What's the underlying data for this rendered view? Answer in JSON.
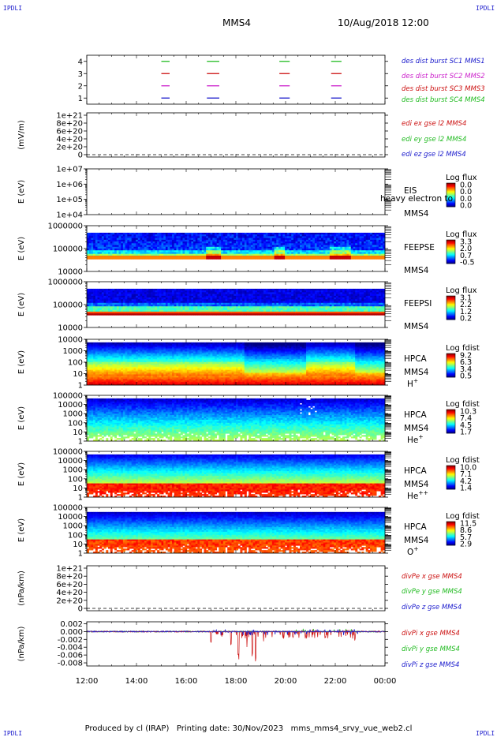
{
  "header": {
    "corner_label": "IPDLI",
    "spacecraft": "MMS4",
    "datetime": "10/Aug/2018 12:00"
  },
  "footer": {
    "produced_by": "Produced by cl (IRAP)",
    "printing_date": "Printing date: 30/Nov/2023",
    "script": "mms_mms4_srvy_vue_web2.cl"
  },
  "chart_data": {
    "type": "panel-stack",
    "x_axis": {
      "range": [
        "12:00",
        "00:00"
      ],
      "tick_labels": [
        "12:00",
        "14:00",
        "16:00",
        "18:00",
        "20:00",
        "22:00",
        "00:00"
      ]
    },
    "panels": [
      {
        "id": "burst",
        "type": "line",
        "ylabel": "",
        "yticks": [
          "1",
          "2",
          "3",
          "4"
        ],
        "ylim": [
          0.5,
          4.5
        ],
        "legend": [
          {
            "label": "des dist burst SC1 MMS1",
            "color": "#1a1acc"
          },
          {
            "label": "des dist burst SC2 MMS2",
            "color": "#cc22cc"
          },
          {
            "label": "des dist burst SC3 MMS3",
            "color": "#cc1111"
          },
          {
            "label": "des dist burst SC4 MMS4",
            "color": "#22bb22"
          }
        ],
        "series": [
          {
            "level": 4,
            "color": "#22bb22"
          },
          {
            "level": 3,
            "color": "#cc1111"
          },
          {
            "level": 2,
            "color": "#cc22cc"
          },
          {
            "level": 1,
            "color": "#1a1acc"
          }
        ],
        "intervals": [
          [
            "15:00",
            "15:20"
          ],
          [
            "16:50",
            "17:20"
          ],
          [
            "19:45",
            "20:10"
          ],
          [
            "21:50",
            "22:15"
          ]
        ]
      },
      {
        "id": "edi",
        "type": "line",
        "ylabel": "(mV/m)",
        "yticks": [
          "0",
          "2e+20",
          "4e+20",
          "6e+20",
          "8e+20",
          "1e+21"
        ],
        "ylim": [
          0,
          1e+21
        ],
        "legend": [
          {
            "label": "edi ex gse l2 MMS4",
            "color": "#cc1111"
          },
          {
            "label": "edi ey gse l2 MMS4",
            "color": "#22bb22"
          },
          {
            "label": "edi ez gse l2 MMS4",
            "color": "#1a1acc"
          }
        ]
      },
      {
        "id": "eis",
        "type": "heatmap",
        "ylabel": "E (eV)",
        "yticks": [
          "1e+04",
          "1e+05",
          "1e+06",
          "1e+07"
        ],
        "instrument": "EIS",
        "species": "heavy electron to",
        "spacecraft": "MMS4",
        "colorbar": {
          "title": "Log flux",
          "ticks": [
            "0.0",
            "0.0",
            "0.0",
            "0.0"
          ]
        }
      },
      {
        "id": "feepse",
        "type": "heatmap",
        "ylabel": "E (eV)",
        "yticks": [
          "10000",
          "100000",
          "1000000"
        ],
        "instrument": "FEEPSE",
        "spacecraft": "MMS4",
        "colorbar": {
          "title": "Log flux",
          "ticks": [
            "3.3",
            "2.0",
            "0.7",
            "-0.5"
          ]
        }
      },
      {
        "id": "feepsi",
        "type": "heatmap",
        "ylabel": "E (eV)",
        "yticks": [
          "10000",
          "100000",
          "1000000"
        ],
        "instrument": "FEEPSI",
        "spacecraft": "MMS4",
        "colorbar": {
          "title": "Log flux",
          "ticks": [
            "3.1",
            "2.2",
            "1.2",
            "0.2"
          ]
        }
      },
      {
        "id": "hpca_h",
        "type": "heatmap",
        "ylabel": "E (eV)",
        "yticks": [
          "1",
          "10",
          "100",
          "1000",
          "10000"
        ],
        "instrument": "HPCA",
        "spacecraft": "MMS4",
        "species_base": "H",
        "species_sup": "+",
        "colorbar": {
          "title": "Log fdist",
          "ticks": [
            "9.2",
            "6.3",
            "3.4",
            "0.5"
          ]
        }
      },
      {
        "id": "hpca_he",
        "type": "heatmap",
        "ylabel": "E (eV)",
        "yticks": [
          "1",
          "10",
          "100",
          "1000",
          "10000",
          "100000"
        ],
        "instrument": "HPCA",
        "spacecraft": "MMS4",
        "species_base": "He",
        "species_sup": "+",
        "colorbar": {
          "title": "Log fdist",
          "ticks": [
            "10.3",
            "7.4",
            "4.5",
            "1.7"
          ]
        }
      },
      {
        "id": "hpca_hepp",
        "type": "heatmap",
        "ylabel": "E (eV)",
        "yticks": [
          "1",
          "10",
          "100",
          "1000",
          "10000",
          "100000"
        ],
        "instrument": "HPCA",
        "spacecraft": "MMS4",
        "species_base": "He",
        "species_sup": "++",
        "colorbar": {
          "title": "Log fdist",
          "ticks": [
            "10.0",
            "7.1",
            "4.2",
            "1.4"
          ]
        }
      },
      {
        "id": "hpca_o",
        "type": "heatmap",
        "ylabel": "E (eV)",
        "yticks": [
          "1",
          "10",
          "100",
          "1000",
          "10000",
          "100000"
        ],
        "instrument": "HPCA",
        "spacecraft": "MMS4",
        "species_base": "O",
        "species_sup": "+",
        "colorbar": {
          "title": "Log fdist",
          "ticks": [
            "11.5",
            "8.6",
            "5.7",
            "2.9"
          ]
        }
      },
      {
        "id": "divpe",
        "type": "line",
        "ylabel": "(nPa/km)",
        "yticks": [
          "0",
          "2e+20",
          "4e+20",
          "6e+20",
          "8e+20",
          "1e+21"
        ],
        "ylim": [
          0,
          1e+21
        ],
        "legend": [
          {
            "label": "divPe x gse MMS4",
            "color": "#cc1111"
          },
          {
            "label": "divPe y gse MMS4",
            "color": "#22bb22"
          },
          {
            "label": "divPe z gse MMS4",
            "color": "#1a1acc"
          }
        ]
      },
      {
        "id": "divpi",
        "type": "line",
        "ylabel": "(nPa/km)",
        "yticks": [
          "-0.008",
          "-0.006",
          "-0.004",
          "-0.002",
          "0.000",
          "0.002"
        ],
        "ylim": [
          -0.0088,
          0.0025
        ],
        "legend": [
          {
            "label": "divPi x gse MMS4",
            "color": "#cc1111"
          },
          {
            "label": "divPi y gse MMS4",
            "color": "#22bb22"
          },
          {
            "label": "divPi z gse MMS4",
            "color": "#1a1acc"
          }
        ],
        "x_dips": [
          {
            "t": 17.0,
            "v": -0.003
          },
          {
            "t": 17.8,
            "v": -0.004
          },
          {
            "t": 18.1,
            "v": -0.0075
          },
          {
            "t": 18.45,
            "v": -0.005
          },
          {
            "t": 18.65,
            "v": -0.0065
          },
          {
            "t": 18.8,
            "v": -0.0085
          },
          {
            "t": 19.1,
            "v": -0.0028
          },
          {
            "t": 20.3,
            "v": -0.0015
          },
          {
            "t": 20.8,
            "v": -0.0022
          },
          {
            "t": 21.6,
            "v": -0.0018
          },
          {
            "t": 22.8,
            "v": -0.0025
          }
        ]
      }
    ]
  }
}
